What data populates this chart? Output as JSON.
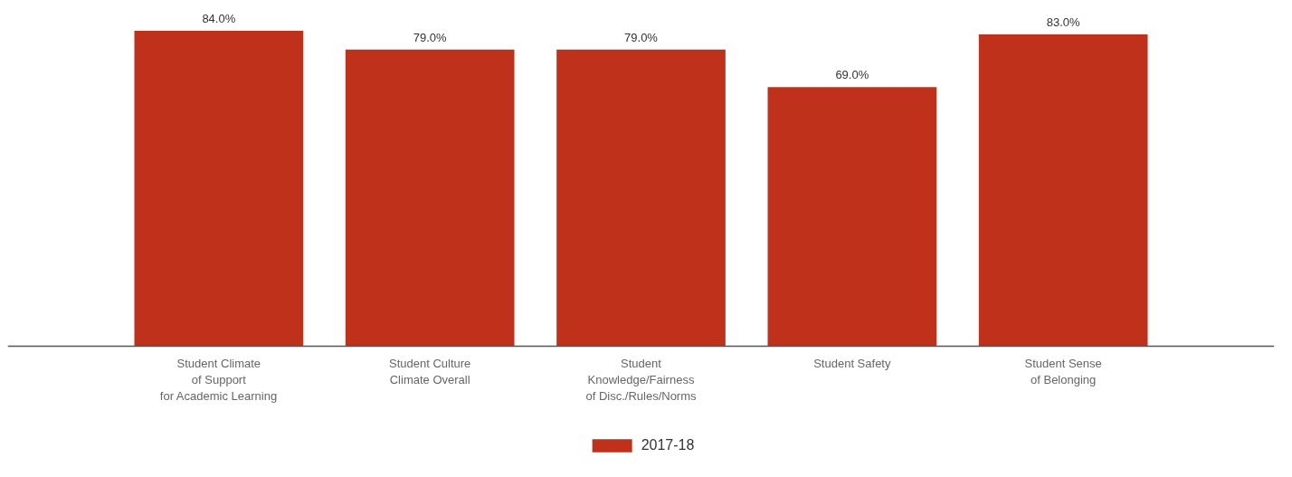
{
  "chart_data": {
    "type": "bar",
    "categories": [
      "Student Climate\nof Support\nfor Academic Learning",
      "Student Culture\nClimate Overall",
      "Student\nKnowledge/Fairness\nof Disc./Rules/Norms",
      "Student Safety",
      "Student Sense\nof Belonging"
    ],
    "series": [
      {
        "name": "2017-18",
        "color": "#c0311c",
        "values": [
          84,
          79,
          79,
          69,
          83
        ],
        "value_labels": [
          "84.0%",
          "79.0%",
          "79.0%",
          "69.0%",
          "83.0%"
        ]
      }
    ],
    "tick_labels": "x",
    "legend": "bottom"
  }
}
